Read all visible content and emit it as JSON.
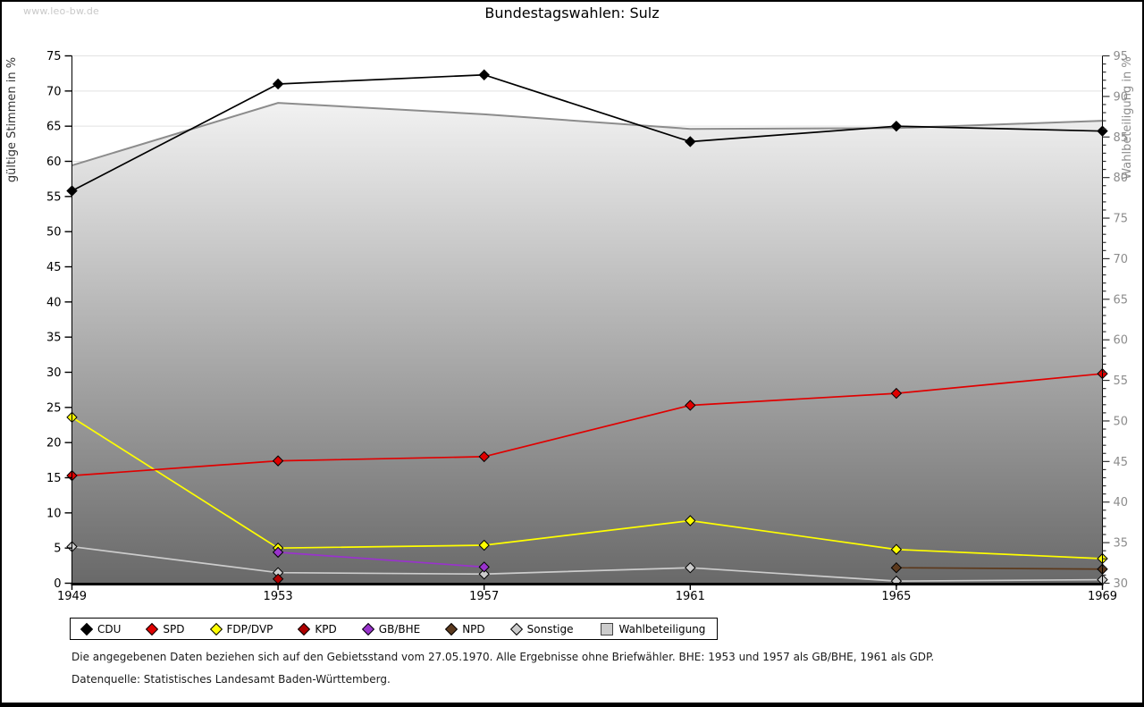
{
  "page": {
    "watermark": "www.leo-bw.de",
    "title": "Bundestagswahlen: Sulz",
    "footnote_line1": "Die angegebenen Daten beziehen sich auf den Gebietsstand vom 27.05.1970. Alle Ergebnisse ohne Briefwähler. BHE: 1953 und 1957 als GB/BHE, 1961 als GDP.",
    "footnote_line2": "Datenquelle: Statistisches Landesamt Baden-Württemberg."
  },
  "chart_data": {
    "type": "line",
    "title": "Bundestagswahlen: Sulz",
    "categories": [
      "1949",
      "1953",
      "1957",
      "1961",
      "1965",
      "1969"
    ],
    "left_axis": {
      "label": "gültige Stimmen in %",
      "min": 0,
      "max": 75,
      "step": 5
    },
    "right_axis": {
      "label": "Wahlbeteiligung in %",
      "min": 30,
      "max": 95,
      "step": 5,
      "minor_step": 1
    },
    "grid": true,
    "legend_position": "bottom",
    "plot_gradient_top": "#ffffff",
    "plot_gradient_bottom": "#696969",
    "gridline_color": "#e2e2e2",
    "series": [
      {
        "name": "CDU",
        "color": "#000000",
        "axis": "left",
        "kind": "line",
        "marker": "diamond",
        "values": [
          55.8,
          71.0,
          72.3,
          62.8,
          65.0,
          64.3
        ]
      },
      {
        "name": "SPD",
        "color": "#e00000",
        "axis": "left",
        "kind": "line",
        "marker": "diamond",
        "values": [
          15.3,
          17.4,
          18.0,
          25.3,
          27.0,
          29.8
        ]
      },
      {
        "name": "FDP/DVP",
        "color": "#ffff00",
        "axis": "left",
        "kind": "line",
        "marker": "diamond",
        "values": [
          23.6,
          5.0,
          5.4,
          8.9,
          4.8,
          3.5
        ]
      },
      {
        "name": "KPD",
        "color": "#b00000",
        "axis": "left",
        "kind": "line",
        "marker": "diamond",
        "values": [
          null,
          0.6,
          null,
          null,
          null,
          null
        ]
      },
      {
        "name": "GB/BHE",
        "color": "#9933cc",
        "axis": "left",
        "kind": "line",
        "marker": "diamond",
        "values": [
          null,
          4.4,
          2.3,
          null,
          null,
          null
        ]
      },
      {
        "name": "NPD",
        "color": "#5c3a1e",
        "axis": "left",
        "kind": "line",
        "marker": "diamond",
        "values": [
          null,
          null,
          null,
          null,
          2.2,
          2.0
        ]
      },
      {
        "name": "Sonstige",
        "color": "#cccccc",
        "axis": "left",
        "kind": "line",
        "marker": "diamond",
        "values": [
          5.2,
          1.5,
          1.3,
          2.2,
          0.3,
          0.5
        ]
      },
      {
        "name": "Wahlbeteiligung",
        "color": "#8c8c8c",
        "axis": "right",
        "kind": "area",
        "marker": "square",
        "values": [
          81.5,
          89.2,
          87.8,
          86.0,
          86.1,
          87.0
        ]
      }
    ]
  }
}
